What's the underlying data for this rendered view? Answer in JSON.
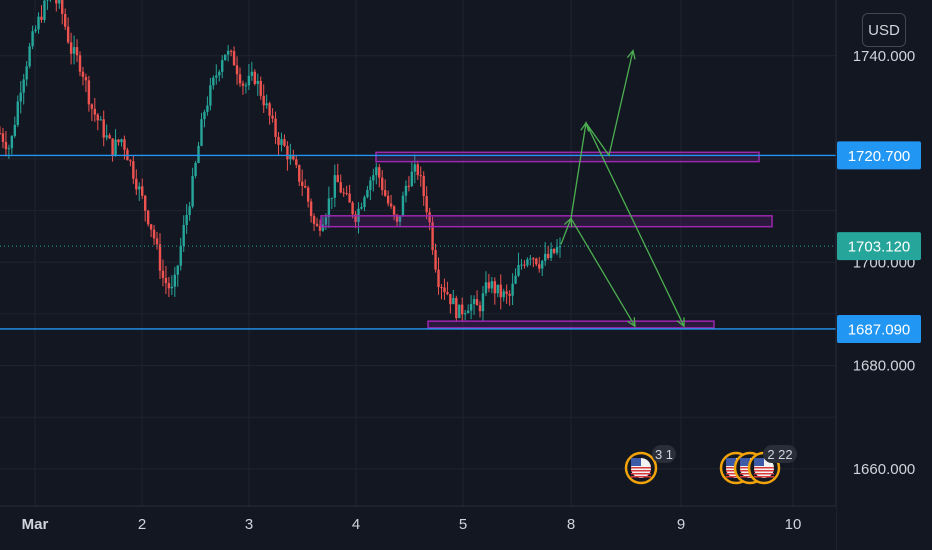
{
  "currency": "USD",
  "colors": {
    "background": "#131722",
    "grid": "#1f2330",
    "up": "#26a69a",
    "down": "#ef5350",
    "level_line": "#2196f3",
    "zone": "#9c27b0",
    "arrow": "#4caf50",
    "current_price": "#26a69a"
  },
  "chart_data": {
    "type": "candlestick",
    "x_ticks": [
      "Mar",
      "2",
      "3",
      "4",
      "5",
      "8",
      "9",
      "10"
    ],
    "y_ticks": [
      "1740.000",
      "1700.000",
      "1680.000",
      "1660.000"
    ],
    "ylim": [
      1651,
      1754
    ],
    "horizontal_levels": [
      {
        "price": 1720.7,
        "label": "1720.700"
      },
      {
        "price": 1687.09,
        "label": "1687.090"
      }
    ],
    "current_price": {
      "price": 1703.12,
      "label": "1703.120"
    },
    "zones": [
      {
        "price_low": 1719.5,
        "price_high": 1721.3,
        "x_start": "Mar 4",
        "x_end": "Mar 9"
      },
      {
        "price_low": 1706.9,
        "price_high": 1709.0,
        "x_start": "Mar 3",
        "x_end": "Mar 9"
      },
      {
        "price_low": 1687.3,
        "price_high": 1688.6,
        "x_start": "Mar 5",
        "x_end": "Mar 9"
      }
    ],
    "projections": [
      {
        "name": "bullish",
        "path_prices": [
          1703.5,
          1708.5,
          1727.0,
          1720.7,
          1741.0
        ]
      },
      {
        "name": "bearish-1",
        "path_prices": [
          1708.5,
          1687.6
        ]
      },
      {
        "name": "bearish-2",
        "path_prices": [
          1727.0,
          1687.6
        ]
      }
    ],
    "events": [
      {
        "flag": "US",
        "count": "3 1"
      },
      {
        "flag": "US",
        "count": "2 22"
      }
    ],
    "close_path": [
      1725,
      1722,
      1734,
      1742,
      1748,
      1752,
      1749,
      1741,
      1738,
      1730,
      1726,
      1722,
      1724,
      1718,
      1712,
      1706,
      1697,
      1694,
      1706,
      1716,
      1729,
      1735,
      1741,
      1739,
      1734,
      1736,
      1731,
      1725,
      1722,
      1718,
      1714,
      1706,
      1710,
      1716,
      1712,
      1709,
      1715,
      1718,
      1712,
      1707,
      1716,
      1718,
      1710,
      1697,
      1694,
      1690,
      1692,
      1691,
      1696,
      1694,
      1693,
      1699,
      1702,
      1700,
      1701,
      1703.12
    ]
  }
}
